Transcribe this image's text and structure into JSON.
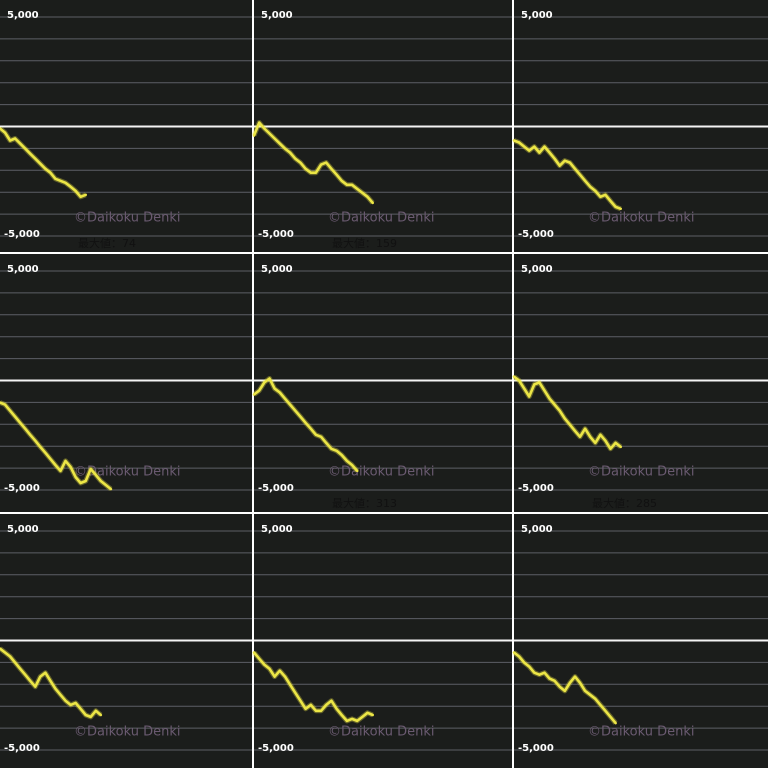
{
  "chart_data": [
    {
      "type": "line",
      "color": "#ece646",
      "ylim": [
        -5000,
        5000
      ],
      "xlim": [
        0,
        50
      ],
      "yticks": [
        {
          "value": 5000,
          "label": "5,000"
        },
        {
          "value": -5000,
          "label": "-5,000"
        }
      ],
      "minor_yticks": [
        -4000,
        -3000,
        -2000,
        -1000,
        0,
        1000,
        2000,
        3000,
        4000
      ],
      "watermark": "©Daikoku Denki",
      "max_label": "最大値：74",
      "values": [
        -90,
        -280,
        -640,
        -550,
        -780,
        -1010,
        -1240,
        -1470,
        -1700,
        -1930,
        -2110,
        -2390,
        -2480,
        -2570,
        -2750,
        -2940,
        -3210,
        -3120
      ]
    },
    {
      "type": "line",
      "color": "#ece646",
      "ylim": [
        -5000,
        5000
      ],
      "xlim": [
        0,
        50
      ],
      "yticks": [
        {
          "value": 5000,
          "label": "5,000"
        },
        {
          "value": -5000,
          "label": "-5,000"
        }
      ],
      "minor_yticks": [
        -4000,
        -3000,
        -2000,
        -1000,
        0,
        1000,
        2000,
        3000,
        4000
      ],
      "watermark": "©Daikoku Denki",
      "max_label": "最大値：159",
      "values": [
        -410,
        180,
        -90,
        -320,
        -550,
        -780,
        -1010,
        -1190,
        -1470,
        -1650,
        -1930,
        -2110,
        -2110,
        -1740,
        -1650,
        -1930,
        -2200,
        -2480,
        -2660,
        -2660,
        -2850,
        -3030,
        -3210,
        -3490
      ]
    },
    {
      "type": "line",
      "color": "#ece646",
      "ylim": [
        -5000,
        5000
      ],
      "xlim": [
        0,
        50
      ],
      "yticks": [
        {
          "value": 5000,
          "label": "5,000"
        },
        {
          "value": -5000,
          "label": "-5,000"
        }
      ],
      "minor_yticks": [
        -4000,
        -3000,
        -2000,
        -1000,
        0,
        1000,
        2000,
        3000,
        4000
      ],
      "watermark": "©Daikoku Denki",
      "values": [
        -640,
        -730,
        -920,
        -1100,
        -920,
        -1190,
        -920,
        -1190,
        -1470,
        -1790,
        -1560,
        -1650,
        -1930,
        -2200,
        -2480,
        -2750,
        -2940,
        -3210,
        -3120,
        -3400,
        -3670,
        -3760
      ]
    },
    {
      "type": "line",
      "color": "#ece646",
      "ylim": [
        -5000,
        5000
      ],
      "xlim": [
        0,
        50
      ],
      "yticks": [
        {
          "value": 5000,
          "label": "5,000"
        },
        {
          "value": -5000,
          "label": "-5,000"
        }
      ],
      "minor_yticks": [
        -4000,
        -3000,
        -2000,
        -1000,
        0,
        1000,
        2000,
        3000,
        4000
      ],
      "watermark": "©Daikoku Denki",
      "values": [
        -1010,
        -1100,
        -1380,
        -1650,
        -1930,
        -2200,
        -2480,
        -2750,
        -3030,
        -3300,
        -3580,
        -3860,
        -4130,
        -3670,
        -3950,
        -4410,
        -4680,
        -4590,
        -4040,
        -4310,
        -4590,
        -4770,
        -4960
      ]
    },
    {
      "type": "line",
      "color": "#ece646",
      "ylim": [
        -5000,
        5000
      ],
      "xlim": [
        0,
        50
      ],
      "yticks": [
        {
          "value": 5000,
          "label": "5,000"
        },
        {
          "value": -5000,
          "label": "-5,000"
        }
      ],
      "minor_yticks": [
        -4000,
        -3000,
        -2000,
        -1000,
        0,
        1000,
        2000,
        3000,
        4000
      ],
      "watermark": "©Daikoku Denki",
      "max_label": "最大値：313",
      "values": [
        -640,
        -460,
        -90,
        90,
        -370,
        -550,
        -830,
        -1100,
        -1380,
        -1650,
        -1930,
        -2200,
        -2480,
        -2570,
        -2850,
        -3120,
        -3210,
        -3400,
        -3670,
        -3860,
        -4130
      ]
    },
    {
      "type": "line",
      "color": "#ece646",
      "ylim": [
        -5000,
        5000
      ],
      "xlim": [
        0,
        50
      ],
      "yticks": [
        {
          "value": 5000,
          "label": "5,000"
        },
        {
          "value": -5000,
          "label": "-5,000"
        }
      ],
      "minor_yticks": [
        -4000,
        -3000,
        -2000,
        -1000,
        0,
        1000,
        2000,
        3000,
        4000
      ],
      "watermark": "©Daikoku Denki",
      "max_label": "最大値：285",
      "values": [
        180,
        0,
        -370,
        -730,
        -180,
        -90,
        -460,
        -830,
        -1100,
        -1380,
        -1740,
        -2020,
        -2300,
        -2570,
        -2200,
        -2570,
        -2850,
        -2480,
        -2750,
        -3120,
        -2850,
        -3030
      ]
    },
    {
      "type": "line",
      "color": "#ece646",
      "ylim": [
        -5000,
        5000
      ],
      "xlim": [
        0,
        50
      ],
      "yticks": [
        {
          "value": 5000,
          "label": "5,000"
        },
        {
          "value": -5000,
          "label": "-5,000"
        }
      ],
      "minor_yticks": [
        -4000,
        -3000,
        -2000,
        -1000,
        0,
        1000,
        2000,
        3000,
        4000
      ],
      "watermark": "©Daikoku Denki",
      "values": [
        -370,
        -550,
        -730,
        -1010,
        -1290,
        -1560,
        -1840,
        -2110,
        -1650,
        -1470,
        -1840,
        -2200,
        -2480,
        -2750,
        -2940,
        -2850,
        -3120,
        -3400,
        -3490,
        -3210,
        -3400
      ]
    },
    {
      "type": "line",
      "color": "#ece646",
      "ylim": [
        -5000,
        5000
      ],
      "xlim": [
        0,
        50
      ],
      "yticks": [
        {
          "value": 5000,
          "label": "5,000"
        },
        {
          "value": -5000,
          "label": "-5,000"
        }
      ],
      "minor_yticks": [
        -4000,
        -3000,
        -2000,
        -1000,
        0,
        1000,
        2000,
        3000,
        4000
      ],
      "watermark": "©Daikoku Denki",
      "values": [
        -550,
        -830,
        -1100,
        -1290,
        -1650,
        -1380,
        -1650,
        -2020,
        -2390,
        -2750,
        -3120,
        -2940,
        -3210,
        -3210,
        -2940,
        -2750,
        -3120,
        -3400,
        -3670,
        -3580,
        -3670,
        -3490,
        -3300,
        -3400
      ]
    },
    {
      "type": "line",
      "color": "#ece646",
      "ylim": [
        -5000,
        5000
      ],
      "xlim": [
        0,
        50
      ],
      "yticks": [
        {
          "value": 5000,
          "label": "5,000"
        },
        {
          "value": -5000,
          "label": "-5,000"
        }
      ],
      "minor_yticks": [
        -4000,
        -3000,
        -2000,
        -1000,
        0,
        1000,
        2000,
        3000,
        4000
      ],
      "watermark": "©Daikoku Denki",
      "values": [
        -550,
        -730,
        -1010,
        -1190,
        -1470,
        -1560,
        -1470,
        -1740,
        -1840,
        -2110,
        -2300,
        -1930,
        -1650,
        -1930,
        -2300,
        -2480,
        -2660,
        -2940,
        -3210,
        -3490,
        -3770
      ]
    }
  ]
}
